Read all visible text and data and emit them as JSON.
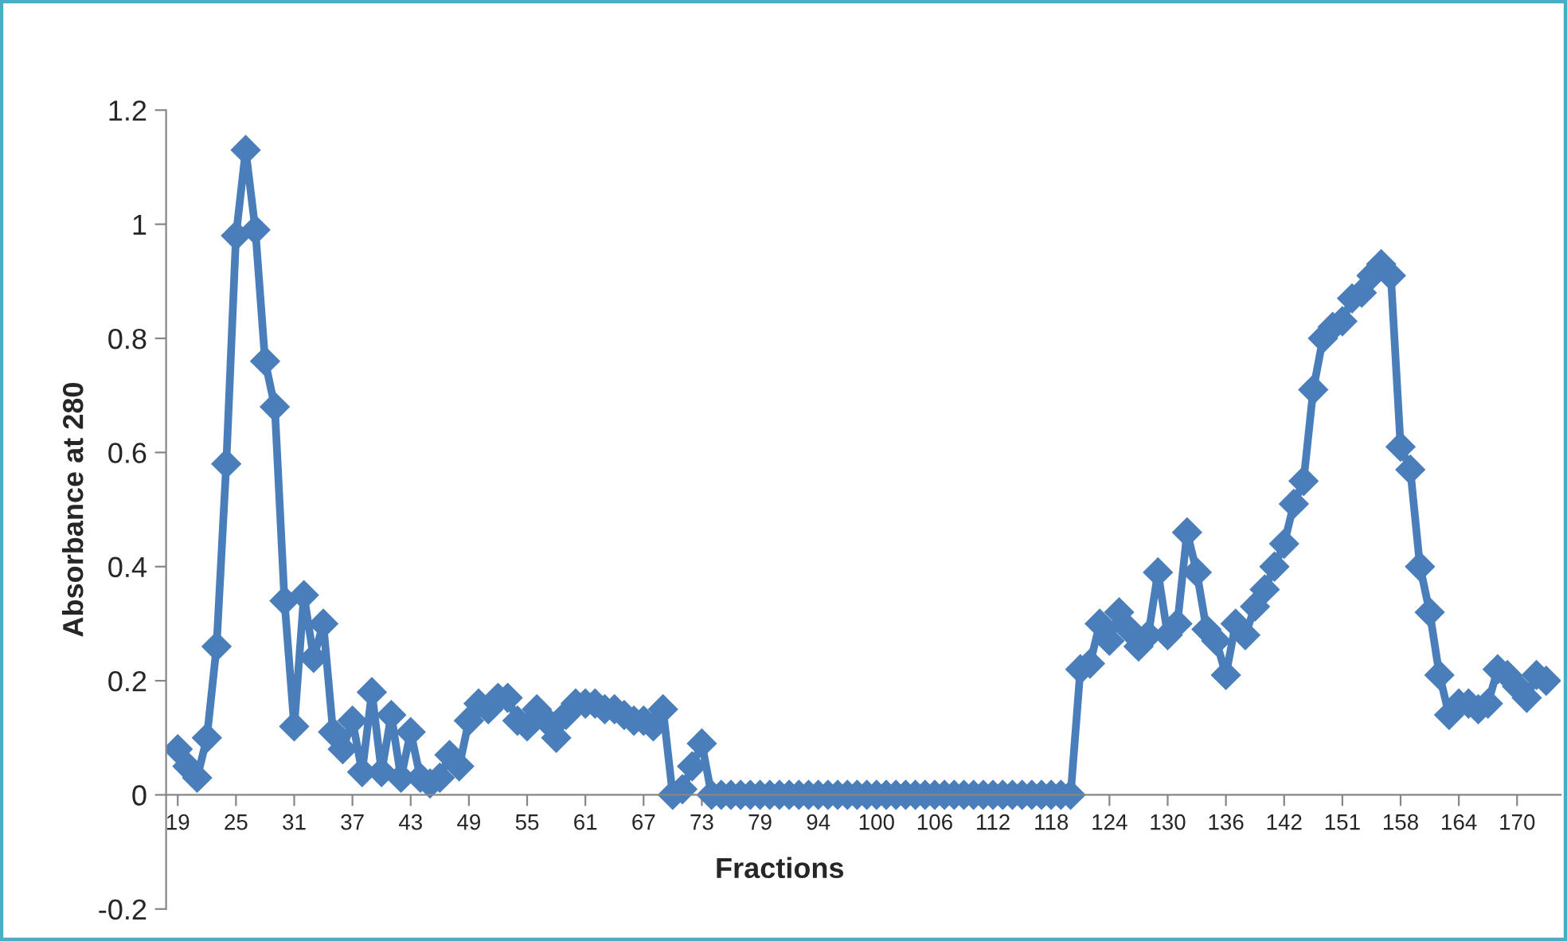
{
  "chart_data": {
    "type": "line",
    "xlabel": "Fractions",
    "ylabel": "Absorbance at 280",
    "categories": [
      "19",
      null,
      null,
      null,
      null,
      null,
      "25",
      null,
      null,
      null,
      null,
      null,
      "31",
      null,
      null,
      null,
      null,
      null,
      "37",
      null,
      null,
      null,
      null,
      null,
      "43",
      null,
      null,
      null,
      null,
      null,
      "49",
      null,
      null,
      null,
      null,
      null,
      "55",
      null,
      null,
      null,
      null,
      null,
      "61",
      null,
      null,
      null,
      null,
      null,
      "67",
      null,
      null,
      null,
      null,
      null,
      "73",
      null,
      null,
      null,
      null,
      null,
      "79",
      null,
      null,
      null,
      null,
      null,
      "94",
      null,
      null,
      null,
      null,
      null,
      "100",
      null,
      null,
      null,
      null,
      null,
      "106",
      null,
      null,
      null,
      null,
      null,
      "112",
      null,
      null,
      null,
      null,
      null,
      "118",
      null,
      null,
      null,
      null,
      null,
      "124",
      null,
      null,
      null,
      null,
      null,
      "130",
      null,
      null,
      null,
      null,
      null,
      "136",
      null,
      null,
      null,
      null,
      null,
      "142",
      null,
      null,
      null,
      null,
      null,
      "151",
      null,
      null,
      null,
      null,
      null,
      "158",
      null,
      null,
      null,
      null,
      null,
      "164",
      null,
      null,
      null,
      null,
      null,
      "170",
      null,
      null,
      null
    ],
    "values": [
      0.08,
      0.05,
      0.03,
      0.1,
      0.26,
      0.58,
      0.98,
      1.13,
      0.99,
      0.76,
      0.68,
      0.34,
      0.12,
      0.35,
      0.24,
      0.3,
      0.11,
      0.08,
      0.13,
      0.04,
      0.18,
      0.04,
      0.14,
      0.03,
      0.11,
      0.03,
      0.02,
      0.03,
      0.07,
      0.05,
      0.13,
      0.16,
      0.15,
      0.17,
      0.17,
      0.13,
      0.12,
      0.15,
      0.13,
      0.1,
      0.14,
      0.16,
      0.16,
      0.16,
      0.15,
      0.15,
      0.14,
      0.13,
      0.13,
      0.12,
      0.15,
      0.0,
      0.01,
      0.05,
      0.09,
      0,
      0,
      0,
      0,
      0,
      0,
      0,
      0,
      0,
      0,
      0,
      0,
      0,
      0,
      0,
      0,
      0,
      0,
      0,
      0,
      0,
      0,
      0,
      0,
      0,
      0,
      0,
      0,
      0,
      0,
      0,
      0,
      0,
      0,
      0,
      0,
      0,
      0,
      0.22,
      0.23,
      0.3,
      0.27,
      0.32,
      0.29,
      0.26,
      0.28,
      0.39,
      0.28,
      0.3,
      0.46,
      0.39,
      0.29,
      0.27,
      0.21,
      0.3,
      0.28,
      0.33,
      0.36,
      0.4,
      0.44,
      0.51,
      0.55,
      0.71,
      0.8,
      0.82,
      0.83,
      0.87,
      0.88,
      0.91,
      0.93,
      0.91,
      0.61,
      0.57,
      0.4,
      0.32,
      0.21,
      0.14,
      0.16,
      0.16,
      0.15,
      0.16,
      0.22,
      0.21,
      0.19,
      0.17,
      0.21,
      0.2
    ],
    "color": "#4a7ebb",
    "marker": "diamond",
    "line_style": "solid",
    "ylim": [
      -0.2,
      1.2
    ],
    "yticks": [
      -0.2,
      0,
      0.2,
      0.4,
      0.6,
      0.8,
      1,
      1.2
    ]
  }
}
